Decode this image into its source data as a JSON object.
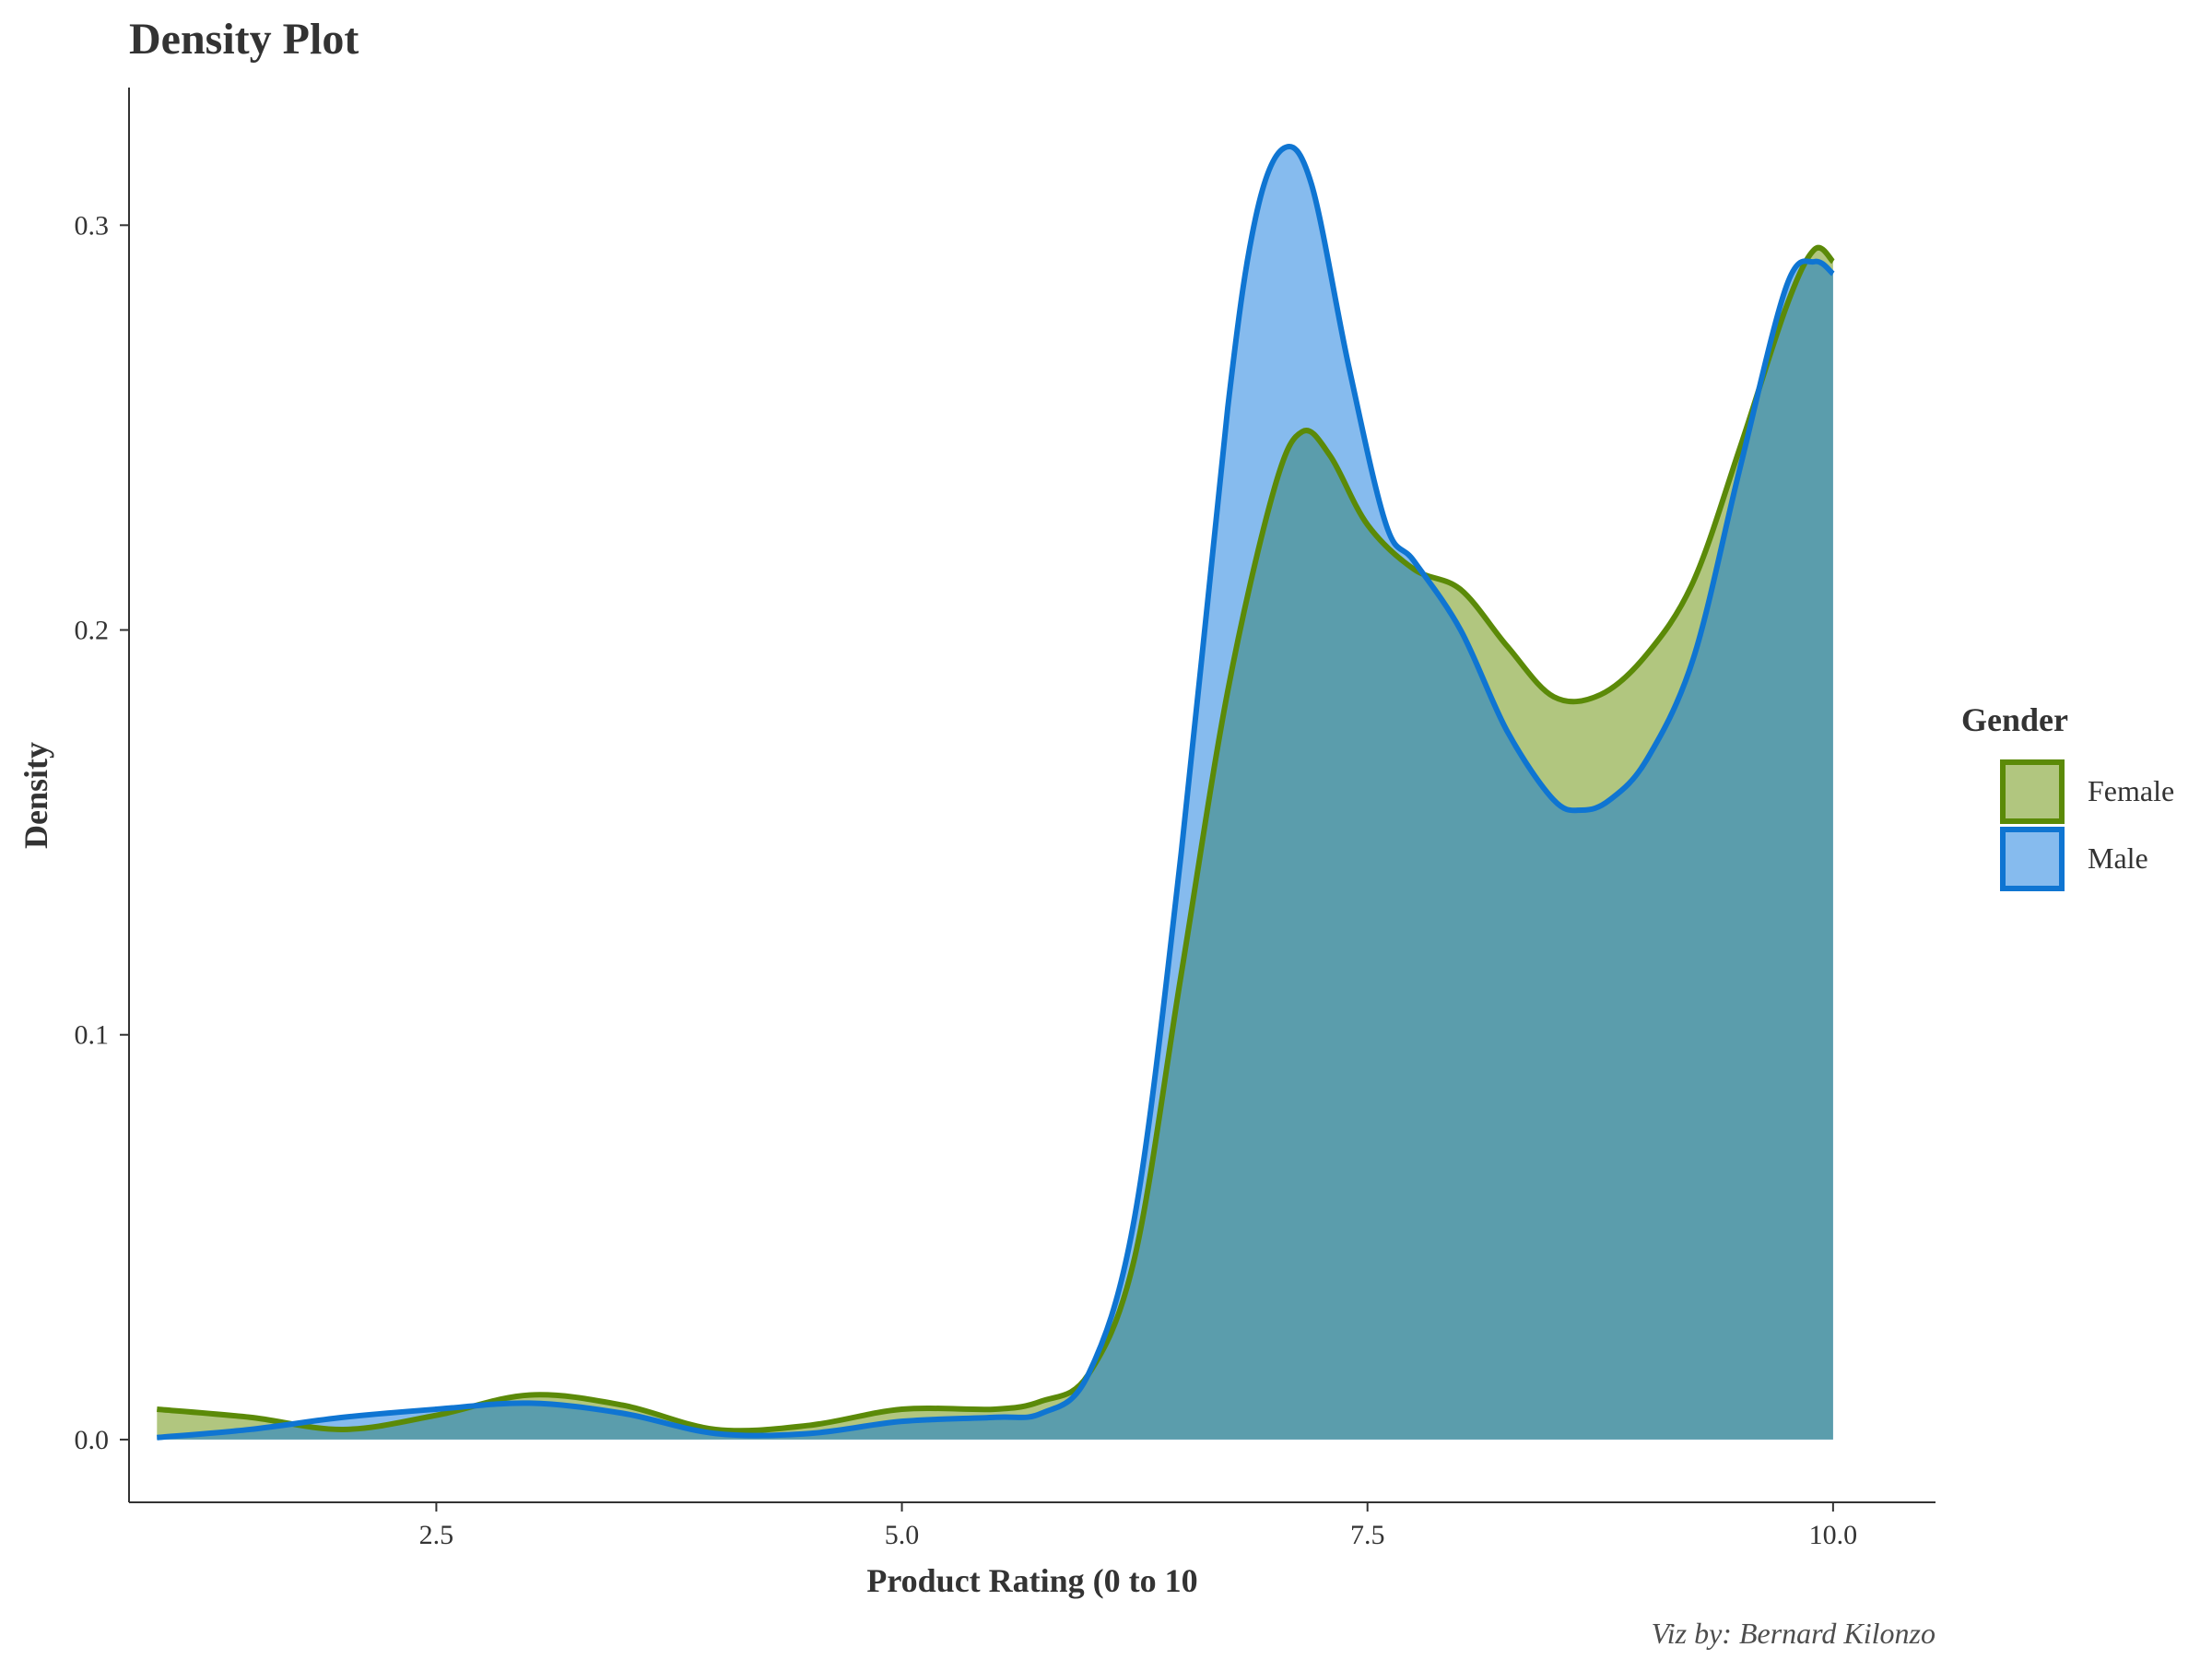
{
  "chart_data": {
    "type": "area",
    "subtype": "density",
    "title": "Density Plot",
    "xlabel": "Product Rating (0 to 10",
    "ylabel": "Density",
    "caption": "Viz by: Bernard Kilonzo",
    "xlim": [
      0.85,
      10.55
    ],
    "ylim": [
      -0.0155,
      0.334
    ],
    "xticks": [
      2.5,
      5.0,
      7.5,
      10.0
    ],
    "xtick_labels": [
      "2.5",
      "5.0",
      "7.5",
      "10.0"
    ],
    "yticks": [
      0.0,
      0.1,
      0.2,
      0.3
    ],
    "ytick_labels": [
      "0.0",
      "0.1",
      "0.2",
      "0.3"
    ],
    "grid": false,
    "legend": {
      "title": "Gender",
      "position": "right",
      "entries": [
        "Female",
        "Male"
      ]
    },
    "series": [
      {
        "name": "Female",
        "stroke": "#5b8a08",
        "fill": "#b1c67f",
        "points": [
          [
            1.0,
            0.0075
          ],
          [
            1.5,
            0.0055
          ],
          [
            2.0,
            0.0025
          ],
          [
            2.5,
            0.006
          ],
          [
            3.0,
            0.011
          ],
          [
            3.5,
            0.0085
          ],
          [
            4.0,
            0.0025
          ],
          [
            4.5,
            0.0035
          ],
          [
            5.0,
            0.0075
          ],
          [
            5.5,
            0.0075
          ],
          [
            5.75,
            0.0095
          ],
          [
            6.0,
            0.016
          ],
          [
            6.25,
            0.045
          ],
          [
            6.5,
            0.115
          ],
          [
            6.75,
            0.185
          ],
          [
            7.0,
            0.235
          ],
          [
            7.15,
            0.249
          ],
          [
            7.3,
            0.243
          ],
          [
            7.5,
            0.226
          ],
          [
            7.75,
            0.215
          ],
          [
            8.0,
            0.21
          ],
          [
            8.25,
            0.196
          ],
          [
            8.5,
            0.1835
          ],
          [
            8.75,
            0.184
          ],
          [
            9.0,
            0.194
          ],
          [
            9.25,
            0.212
          ],
          [
            9.5,
            0.245
          ],
          [
            9.75,
            0.28
          ],
          [
            9.9,
            0.294
          ],
          [
            10.0,
            0.291
          ]
        ]
      },
      {
        "name": "Male",
        "stroke": "#0f75d2",
        "fill": "#86bbee",
        "points": [
          [
            1.0,
            0.0005
          ],
          [
            1.5,
            0.0025
          ],
          [
            2.0,
            0.0055
          ],
          [
            2.5,
            0.0075
          ],
          [
            3.0,
            0.009
          ],
          [
            3.5,
            0.0065
          ],
          [
            4.0,
            0.0015
          ],
          [
            4.5,
            0.0015
          ],
          [
            5.0,
            0.0045
          ],
          [
            5.5,
            0.0055
          ],
          [
            5.75,
            0.0065
          ],
          [
            6.0,
            0.016
          ],
          [
            6.25,
            0.055
          ],
          [
            6.5,
            0.145
          ],
          [
            6.75,
            0.255
          ],
          [
            6.9,
            0.302
          ],
          [
            7.05,
            0.319
          ],
          [
            7.2,
            0.31
          ],
          [
            7.4,
            0.265
          ],
          [
            7.6,
            0.226
          ],
          [
            7.75,
            0.217
          ],
          [
            8.0,
            0.2
          ],
          [
            8.25,
            0.175
          ],
          [
            8.5,
            0.158
          ],
          [
            8.65,
            0.1555
          ],
          [
            8.8,
            0.158
          ],
          [
            9.0,
            0.168
          ],
          [
            9.25,
            0.193
          ],
          [
            9.5,
            0.24
          ],
          [
            9.75,
            0.285
          ],
          [
            9.9,
            0.291
          ],
          [
            10.0,
            0.288
          ]
        ]
      }
    ],
    "overlap_fill": "#5b9dac"
  }
}
